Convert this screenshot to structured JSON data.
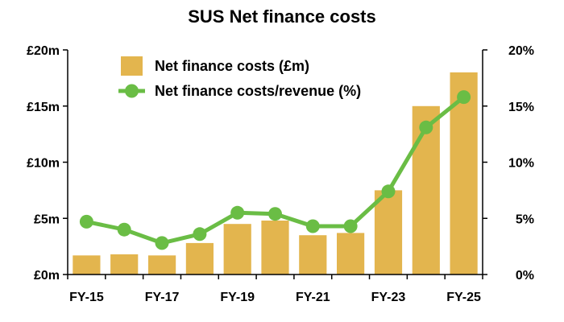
{
  "chart_data": {
    "type": "bar",
    "title": "SUS Net finance costs",
    "categories": [
      "FY-15",
      "FY-16",
      "FY-17",
      "FY-18",
      "FY-19",
      "FY-20",
      "FY-21",
      "FY-22",
      "FY-23",
      "FY-24",
      "FY-25"
    ],
    "x_tick_labels": [
      "FY-15",
      "FY-17",
      "FY-19",
      "FY-21",
      "FY-23",
      "FY-25"
    ],
    "series": [
      {
        "name": "Net finance costs (£m)",
        "type": "bar",
        "axis": "left",
        "color": "#E3B54E",
        "values": [
          1.7,
          1.8,
          1.7,
          2.8,
          4.5,
          4.8,
          3.5,
          3.7,
          7.5,
          15.0,
          18.0
        ]
      },
      {
        "name": "Net finance costs/revenue (%)",
        "type": "line",
        "axis": "right",
        "color": "#6ABD45",
        "values": [
          4.7,
          4.0,
          2.8,
          3.6,
          5.5,
          5.4,
          4.3,
          4.3,
          7.4,
          13.1,
          15.8
        ]
      }
    ],
    "y_left": {
      "ylim": [
        0,
        20
      ],
      "ticks": [
        0,
        5,
        10,
        15,
        20
      ],
      "tick_labels": [
        "£0m",
        "£5m",
        "£10m",
        "£15m",
        "£20m"
      ]
    },
    "y_right": {
      "ylim": [
        0,
        20
      ],
      "ticks": [
        0,
        5,
        10,
        15,
        20
      ],
      "tick_labels": [
        "0%",
        "5%",
        "10%",
        "15%",
        "20%"
      ]
    },
    "grid": false,
    "legend": "top-left"
  }
}
